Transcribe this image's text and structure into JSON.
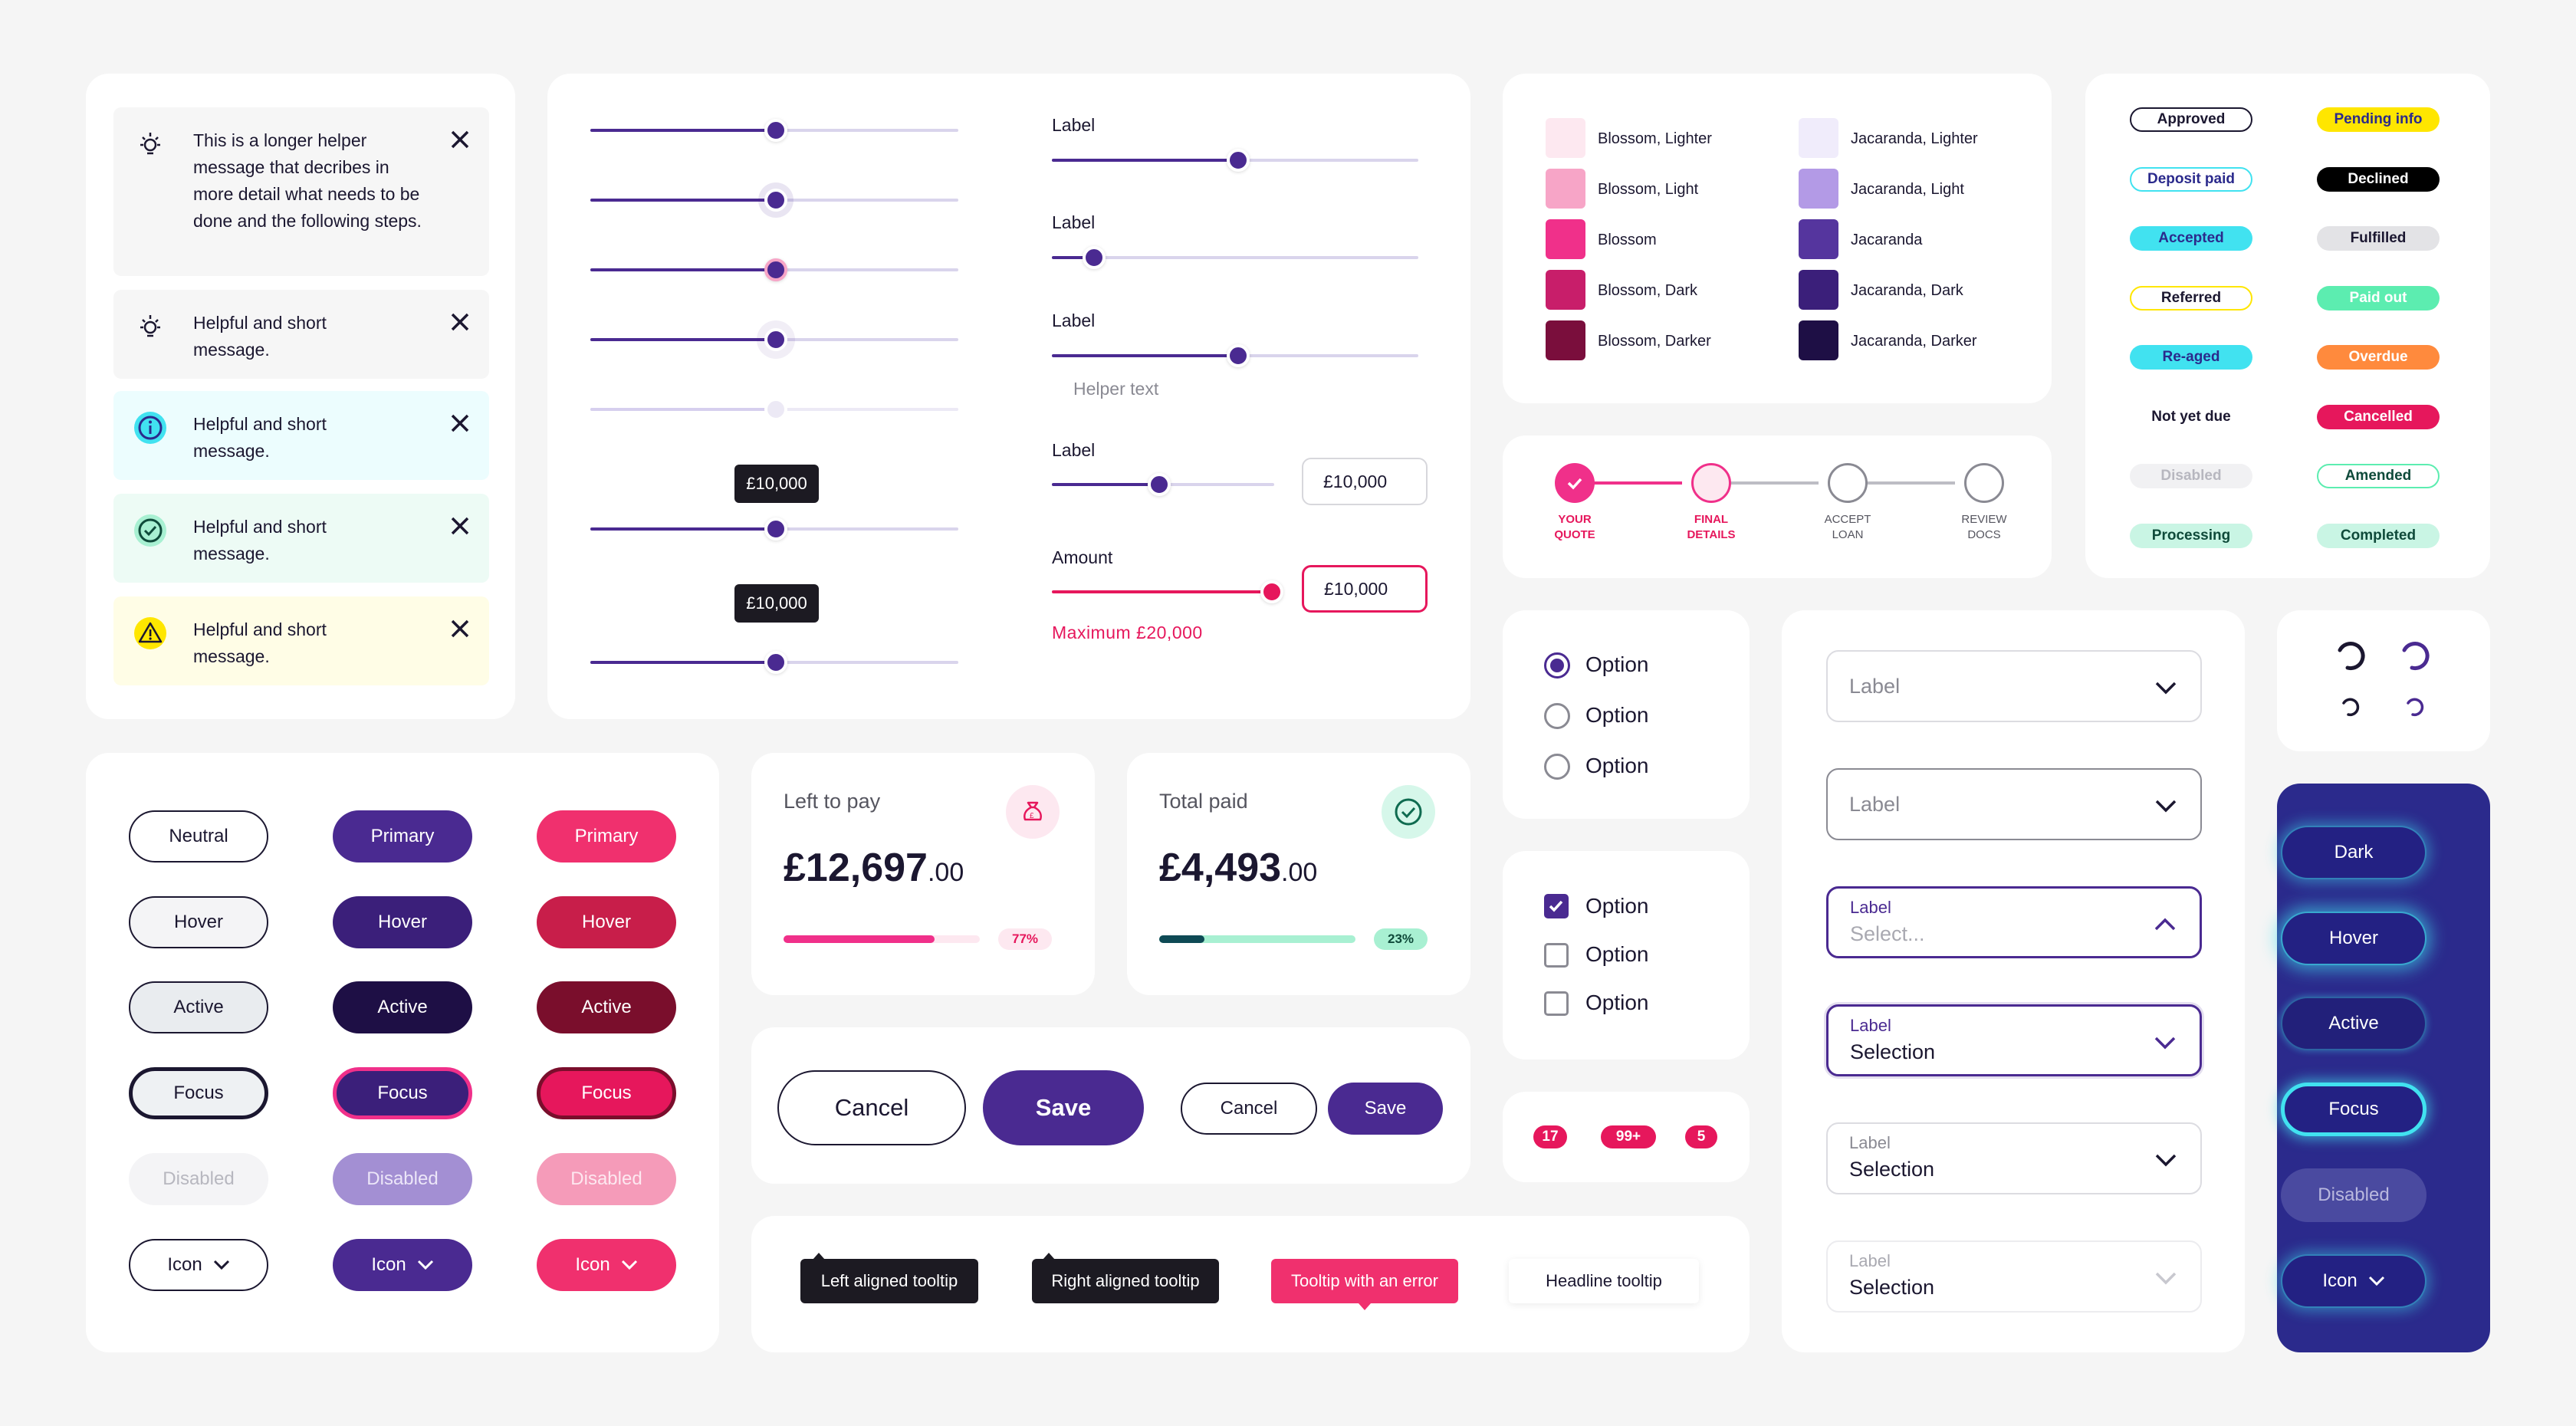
{
  "colors": {
    "primary": "#4a2a91",
    "dark": "#2d1766",
    "magenta": "#e6175c",
    "navy": "#2b2a8c",
    "cyan": "#41e2f0"
  },
  "alerts": [
    {
      "text": "This is a longer helper message that decribes in more detail what needs to be done and the following steps.",
      "icon": "lightbulb-icon",
      "variant": "neutral"
    },
    {
      "text": "Helpful and short message.",
      "icon": "lightbulb-icon",
      "variant": "neutral"
    },
    {
      "text": "Helpful and short message.",
      "icon": "info-icon",
      "variant": "info"
    },
    {
      "text": "Helpful and short message.",
      "icon": "check-circle-icon",
      "variant": "success"
    },
    {
      "text": "Helpful and short message.",
      "icon": "warning-icon",
      "variant": "warning"
    }
  ],
  "sliders": {
    "tooltip_value": "£10,000",
    "labels": [
      "Label",
      "Label",
      "Label",
      "Label"
    ],
    "helper_text": "Helper text",
    "input_value": "£10,000",
    "amount_label": "Amount",
    "amount_value": "£10,000",
    "amount_error": "Maximum £20,000"
  },
  "swatches": {
    "blossom": [
      {
        "name": "Blossom, Lighter",
        "color": "#fde8f0"
      },
      {
        "name": "Blossom, Light",
        "color": "#f7a5c7"
      },
      {
        "name": "Blossom",
        "color": "#f0308a"
      },
      {
        "name": "Blossom, Dark",
        "color": "#c81e6a"
      },
      {
        "name": "Blossom, Darker",
        "color": "#7a0e3c"
      }
    ],
    "jacaranda": [
      {
        "name": "Jacaranda, Lighter",
        "color": "#f0ecfb"
      },
      {
        "name": "Jacaranda, Light",
        "color": "#b39ae6"
      },
      {
        "name": "Jacaranda",
        "color": "#55359e"
      },
      {
        "name": "Jacaranda, Dark",
        "color": "#3b1f7a"
      },
      {
        "name": "Jacaranda, Darker",
        "color": "#1e0f45"
      }
    ]
  },
  "badges": {
    "left": [
      "Approved",
      "Deposit paid",
      "Accepted",
      "Referred",
      "Re-aged",
      "Not yet due",
      "Disabled",
      "Processing"
    ],
    "right": [
      "Pending info",
      "Declined",
      "Fulfilled",
      "Paid out",
      "Overdue",
      "Cancelled",
      "Amended",
      "Completed"
    ]
  },
  "stepper": [
    {
      "line1": "YOUR",
      "line2": "QUOTE",
      "state": "done"
    },
    {
      "line1": "FINAL",
      "line2": "DETAILS",
      "state": "current"
    },
    {
      "line1": "ACCEPT",
      "line2": "LOAN",
      "state": "todo"
    },
    {
      "line1": "REVIEW",
      "line2": "DOCS",
      "state": "todo"
    }
  ],
  "radios": {
    "options": [
      "Option",
      "Option",
      "Option"
    ],
    "selected": 0
  },
  "checkboxes": {
    "options": [
      "Option",
      "Option",
      "Option"
    ],
    "checked": [
      true,
      false,
      false
    ]
  },
  "counters": [
    "17",
    "99+",
    "5"
  ],
  "selects": [
    {
      "label": "Label",
      "value": "",
      "state": "default"
    },
    {
      "label": "Label",
      "value": "",
      "state": "hover"
    },
    {
      "label": "Label",
      "value": "Select...",
      "state": "open"
    },
    {
      "label": "Label",
      "value": "Selection",
      "state": "focus"
    },
    {
      "label": "Label",
      "value": "Selection",
      "state": "filled"
    },
    {
      "label": "Label",
      "value": "Selection",
      "state": "disabled"
    }
  ],
  "buttons": {
    "neutral": [
      "Neutral",
      "Hover",
      "Active",
      "Focus",
      "Disabled",
      "Icon"
    ],
    "primary": [
      "Primary",
      "Hover",
      "Active",
      "Focus",
      "Disabled",
      "Icon"
    ],
    "magenta": [
      "Primary",
      "Hover",
      "Active",
      "Focus",
      "Disabled",
      "Icon"
    ],
    "dark": [
      "Dark",
      "Hover",
      "Active",
      "Focus",
      "Disabled",
      "Icon"
    ]
  },
  "stats": [
    {
      "label": "Left to pay",
      "amount": "£12,697",
      "pence": ".00",
      "percent": "77%",
      "progress": 0.77,
      "icon": "money-bag-icon"
    },
    {
      "label": "Total paid",
      "amount": "£4,493",
      "pence": ".00",
      "percent": "23%",
      "progress": 0.23,
      "icon": "check-circle-icon"
    }
  ],
  "actions": {
    "cancel_large": "Cancel",
    "save_large": "Save",
    "cancel_small": "Cancel",
    "save_small": "Save"
  },
  "tooltips": [
    "Left aligned tooltip",
    "Right aligned tooltip",
    "Tooltip with an error",
    "Headline tooltip"
  ]
}
